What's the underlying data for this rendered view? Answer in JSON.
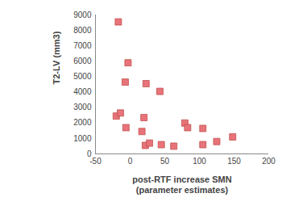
{
  "chart_data": {
    "type": "scatter",
    "x_label": "post-RTF increase SMN (parameter estimates)",
    "y_label": "T2-LV (mm3)",
    "x": [
      -17,
      -3,
      -7,
      23,
      43,
      -20,
      -14,
      -6,
      17,
      20,
      22,
      28,
      45,
      63,
      79,
      83,
      105,
      105,
      125,
      148
    ],
    "values": [
      8550,
      5900,
      4650,
      4550,
      4050,
      2450,
      2650,
      1700,
      1450,
      2350,
      550,
      700,
      600,
      500,
      2000,
      1700,
      1650,
      600,
      800,
      1100
    ],
    "color": "#e8737a",
    "marker": "square",
    "xlim": [
      -50,
      200
    ],
    "xticks": [
      -50,
      0,
      50,
      100,
      150,
      200
    ],
    "ylim": [
      0,
      9000
    ],
    "yticks": [
      0,
      1000,
      2000,
      3000,
      4000,
      5000,
      6000,
      7000,
      8000,
      9000
    ],
    "grid": false
  }
}
